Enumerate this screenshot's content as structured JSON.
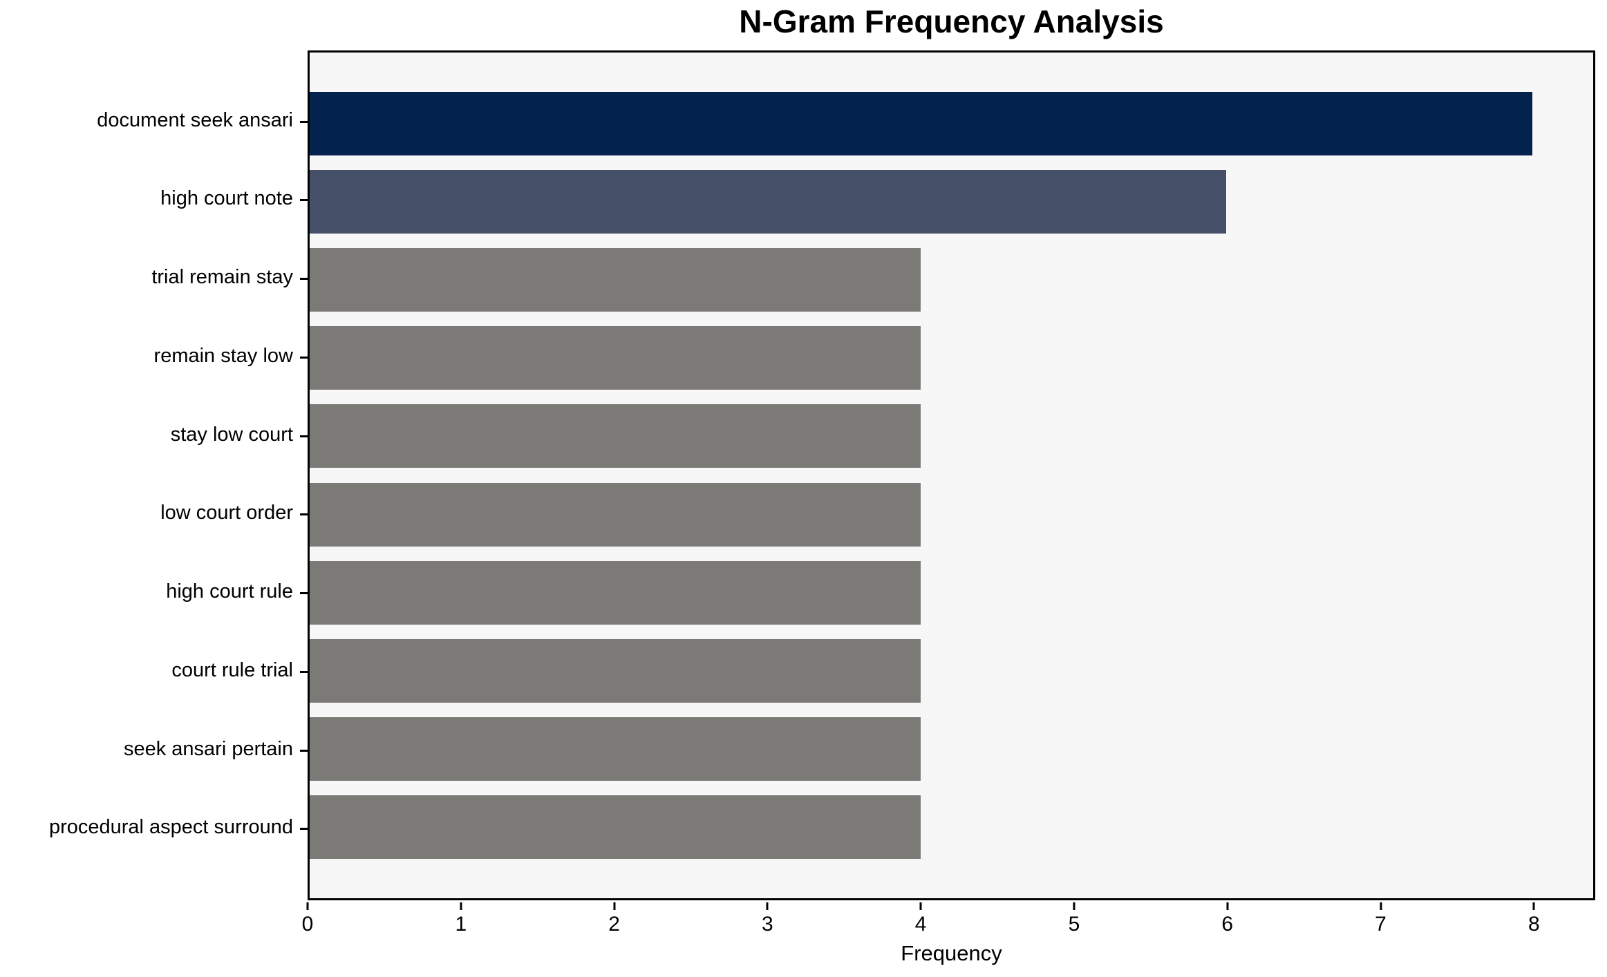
{
  "title": "N-Gram Frequency Analysis",
  "chart_data": {
    "type": "bar",
    "orientation": "horizontal",
    "title": "N-Gram Frequency Analysis",
    "xlabel": "Frequency",
    "ylabel": "",
    "categories": [
      "document seek ansari",
      "high court note",
      "trial remain stay",
      "remain stay low",
      "stay low court",
      "low court order",
      "high court rule",
      "court rule trial",
      "seek ansari pertain",
      "procedural aspect surround"
    ],
    "values": [
      8,
      6,
      4,
      4,
      4,
      4,
      4,
      4,
      4,
      4
    ],
    "bar_colors": [
      "#03234e",
      "#475069",
      "#7b7a77",
      "#7b7a77",
      "#7b7a77",
      "#7b7a77",
      "#7b7a77",
      "#7b7a77",
      "#7b7a77",
      "#7b7a77"
    ],
    "xticks": [
      0,
      1,
      2,
      3,
      4,
      5,
      6,
      7,
      8
    ],
    "xlim": [
      0,
      8.4
    ],
    "grid": false,
    "legend": "none",
    "plot_background": "#f8f7f7",
    "figure_background": "#ffffff",
    "spine_color": "#000000"
  }
}
